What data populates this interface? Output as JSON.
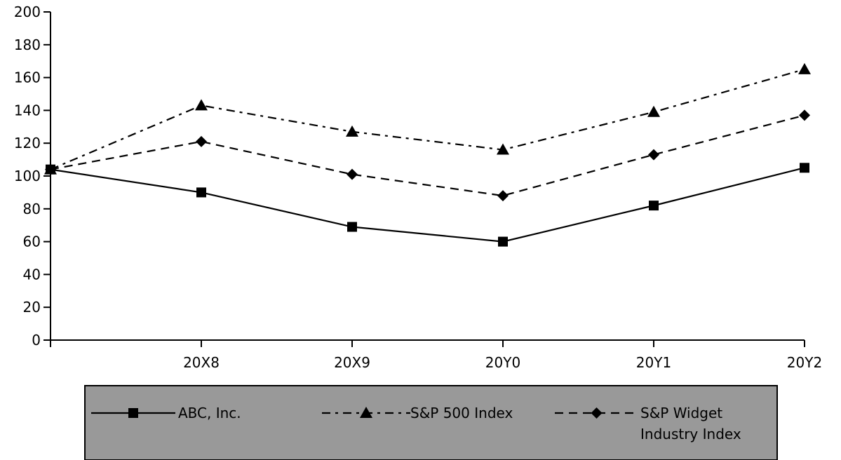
{
  "chart_data": {
    "type": "line",
    "title": "",
    "xlabel": "",
    "ylabel": "",
    "categories": [
      "",
      "20X8",
      "20X9",
      "20Y0",
      "20Y1",
      "20Y2"
    ],
    "ylim": [
      0,
      200
    ],
    "yticks": [
      "0",
      "20",
      "40",
      "60",
      "80",
      "100",
      "120",
      "140",
      "160",
      "180",
      "200"
    ],
    "grid": false,
    "legend_position": "bottom",
    "series": [
      {
        "name": "ABC, Inc.",
        "values": [
          104,
          90,
          69,
          60,
          82,
          105
        ],
        "line_style": "solid",
        "marker": "square",
        "color": "#000000"
      },
      {
        "name": "S&P 500 Index",
        "values": [
          104,
          143,
          127,
          116,
          139,
          165
        ],
        "line_style": "dash-dot",
        "marker": "triangle",
        "color": "#000000"
      },
      {
        "name": "S&P Widget Industry Index",
        "values": [
          104,
          121,
          101,
          88,
          113,
          137
        ],
        "line_style": "dashed",
        "marker": "diamond",
        "color": "#000000"
      }
    ],
    "legend": {
      "background": "#999999",
      "border": "#000000",
      "entries": [
        {
          "lines": [
            "ABC, Inc."
          ]
        },
        {
          "lines": [
            "S&P 500 Index"
          ]
        },
        {
          "lines": [
            "S&P Widget",
            "Industry Index"
          ]
        }
      ]
    }
  }
}
